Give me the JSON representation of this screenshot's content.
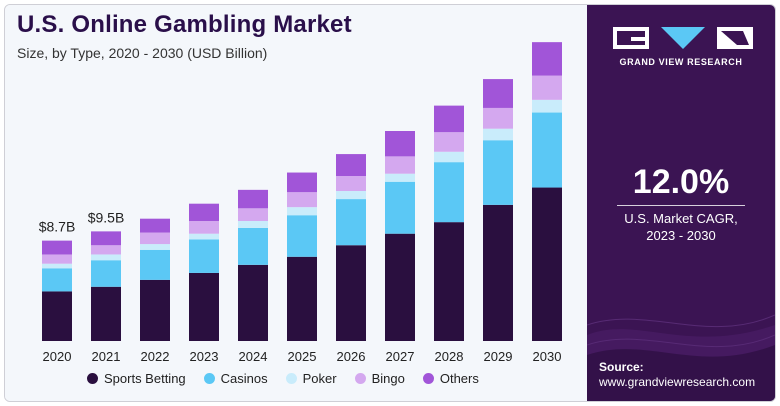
{
  "header": {
    "title": "U.S. Online Gambling Market",
    "subtitle": "Size, by Type, 2020 - 2030 (USD Billion)"
  },
  "colors": {
    "sports_betting": "#2a0f3f",
    "casinos": "#5bc8f5",
    "poker": "#c9ecfb",
    "bingo": "#d4a8ef",
    "others": "#a155d8",
    "panel": "#3b1453"
  },
  "chart_data": {
    "type": "bar",
    "stacked": true,
    "categories": [
      "2020",
      "2021",
      "2022",
      "2023",
      "2024",
      "2025",
      "2026",
      "2027",
      "2028",
      "2029",
      "2030"
    ],
    "series": [
      {
        "name": "Sports Betting",
        "values": [
          4.3,
          4.7,
          5.3,
          5.9,
          6.6,
          7.3,
          8.3,
          9.3,
          10.3,
          11.8,
          13.3
        ]
      },
      {
        "name": "Casinos",
        "values": [
          2.0,
          2.3,
          2.6,
          2.9,
          3.2,
          3.6,
          4.0,
          4.5,
          5.2,
          5.6,
          6.5
        ]
      },
      {
        "name": "Poker",
        "values": [
          0.4,
          0.5,
          0.5,
          0.5,
          0.6,
          0.7,
          0.7,
          0.7,
          0.9,
          1.0,
          1.1
        ]
      },
      {
        "name": "Bingo",
        "values": [
          0.8,
          0.8,
          1.0,
          1.1,
          1.1,
          1.3,
          1.3,
          1.5,
          1.7,
          1.8,
          2.1
        ]
      },
      {
        "name": "Others",
        "values": [
          1.2,
          1.2,
          1.2,
          1.5,
          1.6,
          1.7,
          1.9,
          2.2,
          2.3,
          2.5,
          2.9
        ]
      }
    ],
    "data_labels": [
      {
        "category": "2020",
        "text": "$8.7B"
      },
      {
        "category": "2021",
        "text": "$9.5B"
      }
    ],
    "ylim": [
      0,
      26
    ],
    "grid": false,
    "legend": "bottom"
  },
  "legend": {
    "items": [
      {
        "label": "Sports Betting"
      },
      {
        "label": "Casinos"
      },
      {
        "label": "Poker"
      },
      {
        "label": "Bingo"
      },
      {
        "label": "Others"
      }
    ]
  },
  "panel": {
    "brand": "GRAND VIEW RESEARCH",
    "cagr_value": "12.0%",
    "cagr_line1": "U.S. Market CAGR,",
    "cagr_line2": "2023 - 2030",
    "source_label": "Source:",
    "source_url": "www.grandviewresearch.com"
  }
}
